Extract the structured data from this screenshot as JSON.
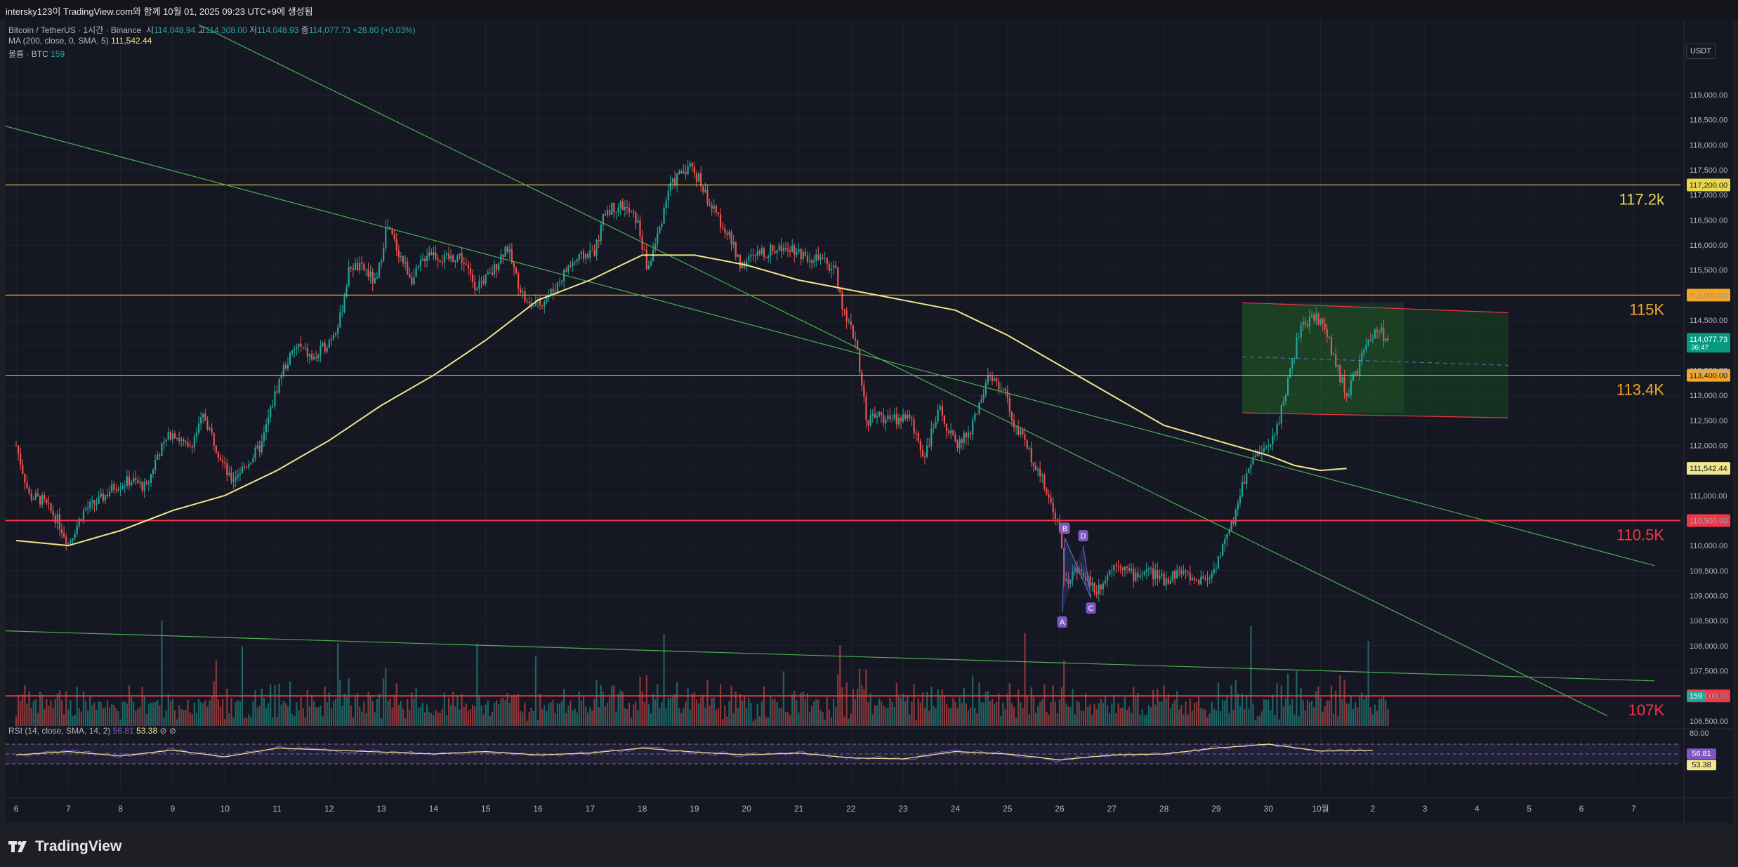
{
  "header": {
    "title": "intersky123이 TradingView.com와 함께 10월 01, 2025 09:23 UTC+9에 생성됨"
  },
  "legend": {
    "symbol": "Bitcoin / TetherUS · 1시간 · Binance",
    "open_label": "시",
    "open": "114,048.94",
    "high_label": "고",
    "high": "114,308.00",
    "low_label": "저",
    "low": "114,048.93",
    "close_label": "종",
    "close": "114,077.73",
    "change": "+28.80 (+0.03%)",
    "ma_label": "MA (200, close, 0, SMA, 5)",
    "ma_value": "111,542.44",
    "volume_label": "볼륨 · BTC",
    "volume_value": "159",
    "rsi_label": "RSI (14, close, SMA, 14, 2)",
    "rsi_value": "56.81",
    "rsi_ma_value": "53.38"
  },
  "currency_badge": "USDT",
  "branding": {
    "logo_text": "TradingView"
  },
  "colors": {
    "up": "#26a69a",
    "down": "#ef5350",
    "ma": "#f0e68c",
    "level_yellow": "#e9d84a",
    "level_orange": "#f5a623",
    "level_red": "#f23645",
    "trendline": "#4caf50",
    "rsi": "#7e57c2",
    "background": "#151823"
  },
  "chart_data": {
    "type": "candlestick",
    "symbol": "BTCUSDT",
    "interval": "1시간",
    "exchange": "Binance",
    "x": {
      "tick_labels": [
        "6",
        "7",
        "8",
        "9",
        "10",
        "11",
        "12",
        "13",
        "14",
        "15",
        "16",
        "17",
        "18",
        "19",
        "20",
        "21",
        "22",
        "23",
        "24",
        "25",
        "26",
        "27",
        "28",
        "29",
        "30",
        "10월",
        "2",
        "3",
        "4",
        "5",
        "6",
        "7"
      ]
    },
    "y": {
      "range": [
        106400,
        120500
      ],
      "tick_labels": [
        "119,000.00",
        "118,500.00",
        "118,000.00",
        "117,500.00",
        "117,000.00",
        "116,500.00",
        "116,000.00",
        "115,500.00",
        "115,000.00",
        "114,500.00",
        "114,000.00",
        "113,500.00",
        "113,000.00",
        "112,500.00",
        "112,000.00",
        "111,500.00",
        "111,000.00",
        "110,500.00",
        "110,000.00",
        "109,500.00",
        "109,000.00",
        "108,500.00",
        "108,000.00",
        "107,500.00",
        "107,000.00",
        "106,500.00"
      ]
    },
    "price_path": [
      [
        0,
        112000
      ],
      [
        0.25,
        111000
      ],
      [
        0.5,
        110900
      ],
      [
        0.8,
        110500
      ],
      [
        1.0,
        110050
      ],
      [
        1.3,
        110700
      ],
      [
        1.6,
        110900
      ],
      [
        1.9,
        111200
      ],
      [
        2.2,
        111300
      ],
      [
        2.5,
        111150
      ],
      [
        2.7,
        111800
      ],
      [
        3.0,
        112300
      ],
      [
        3.3,
        111900
      ],
      [
        3.6,
        112600
      ],
      [
        3.9,
        111800
      ],
      [
        4.1,
        111300
      ],
      [
        4.4,
        111600
      ],
      [
        4.7,
        112000
      ],
      [
        4.9,
        112800
      ],
      [
        5.1,
        113500
      ],
      [
        5.4,
        114000
      ],
      [
        5.7,
        113700
      ],
      [
        6.0,
        114100
      ],
      [
        6.2,
        114500
      ],
      [
        6.4,
        115600
      ],
      [
        6.7,
        115500
      ],
      [
        6.9,
        115200
      ],
      [
        7.1,
        116400
      ],
      [
        7.4,
        115700
      ],
      [
        7.6,
        115300
      ],
      [
        7.9,
        115900
      ],
      [
        8.2,
        115700
      ],
      [
        8.5,
        115800
      ],
      [
        8.8,
        115200
      ],
      [
        9.1,
        115400
      ],
      [
        9.4,
        116000
      ],
      [
        9.6,
        115300
      ],
      [
        9.8,
        114800
      ],
      [
        10.0,
        114800
      ],
      [
        10.3,
        115100
      ],
      [
        10.6,
        115600
      ],
      [
        10.9,
        115800
      ],
      [
        11.1,
        115900
      ],
      [
        11.3,
        116700
      ],
      [
        11.6,
        116800
      ],
      [
        11.9,
        116500
      ],
      [
        12.1,
        115500
      ],
      [
        12.3,
        116200
      ],
      [
        12.5,
        117100
      ],
      [
        12.7,
        117400
      ],
      [
        12.9,
        117600
      ],
      [
        13.1,
        117300
      ],
      [
        13.3,
        116800
      ],
      [
        13.6,
        116300
      ],
      [
        13.9,
        115600
      ],
      [
        14.2,
        115800
      ],
      [
        14.5,
        115900
      ],
      [
        14.8,
        116000
      ],
      [
        15.1,
        115800
      ],
      [
        15.4,
        115700
      ],
      [
        15.7,
        115500
      ],
      [
        15.9,
        114500
      ],
      [
        16.1,
        114100
      ],
      [
        16.3,
        112500
      ],
      [
        16.5,
        112600
      ],
      [
        16.8,
        112500
      ],
      [
        17.1,
        112600
      ],
      [
        17.4,
        111800
      ],
      [
        17.7,
        112700
      ],
      [
        18.0,
        112000
      ],
      [
        18.3,
        112300
      ],
      [
        18.6,
        113300
      ],
      [
        18.9,
        113200
      ],
      [
        19.1,
        112500
      ],
      [
        19.3,
        112100
      ],
      [
        19.6,
        111500
      ],
      [
        19.8,
        110900
      ],
      [
        20.0,
        110400
      ],
      [
        20.1,
        109200
      ],
      [
        20.3,
        109500
      ],
      [
        20.5,
        109400
      ],
      [
        20.7,
        109100
      ],
      [
        20.9,
        109400
      ],
      [
        21.1,
        109700
      ],
      [
        21.4,
        109400
      ],
      [
        21.7,
        109500
      ],
      [
        22.0,
        109300
      ],
      [
        22.3,
        109500
      ],
      [
        22.6,
        109300
      ],
      [
        22.9,
        109400
      ],
      [
        23.1,
        109900
      ],
      [
        23.3,
        110400
      ],
      [
        23.5,
        111200
      ],
      [
        23.7,
        111800
      ],
      [
        24.0,
        111900
      ],
      [
        24.2,
        112500
      ],
      [
        24.4,
        113400
      ],
      [
        24.6,
        114300
      ],
      [
        24.9,
        114600
      ],
      [
        25.1,
        114300
      ],
      [
        25.3,
        113600
      ],
      [
        25.5,
        113000
      ],
      [
        25.7,
        113500
      ],
      [
        25.9,
        114000
      ],
      [
        26.1,
        114300
      ],
      [
        26.3,
        114100
      ]
    ],
    "moving_average": {
      "name": "MA (200, close, 0, SMA, 5)",
      "last_value": 111542.44,
      "path": [
        [
          0,
          110100
        ],
        [
          1,
          110000
        ],
        [
          2,
          110300
        ],
        [
          3,
          110700
        ],
        [
          4,
          111000
        ],
        [
          5,
          111500
        ],
        [
          6,
          112100
        ],
        [
          7,
          112800
        ],
        [
          8,
          113400
        ],
        [
          9,
          114100
        ],
        [
          10,
          114900
        ],
        [
          11,
          115300
        ],
        [
          12,
          115800
        ],
        [
          13,
          115800
        ],
        [
          14,
          115600
        ],
        [
          15,
          115300
        ],
        [
          16,
          115100
        ],
        [
          17,
          114900
        ],
        [
          18,
          114700
        ],
        [
          19,
          114200
        ],
        [
          20,
          113600
        ],
        [
          21,
          113000
        ],
        [
          22,
          112400
        ],
        [
          23,
          112100
        ],
        [
          24,
          111800
        ],
        [
          24.5,
          111600
        ],
        [
          25,
          111500
        ],
        [
          25.5,
          111540
        ]
      ]
    },
    "horizontal_levels": [
      {
        "price": 117200,
        "label": "117.2k",
        "axis_label": "117,200.00",
        "color": "#e9d84a"
      },
      {
        "price": 115000,
        "label": "115K",
        "axis_label": "115,000.00",
        "color": "#f5a623"
      },
      {
        "price": 113400,
        "label": "113.4K",
        "axis_label": "113,400.00",
        "color": "#f5a623"
      },
      {
        "price": 110500,
        "label": "110.5K",
        "axis_label": "110,500.00",
        "color": "#f23645"
      },
      {
        "price": 107000,
        "label": "107K",
        "axis_label": "107,000.00",
        "color": "#f23645"
      }
    ],
    "trendlines": [
      {
        "from": [
          -0.3,
          118400
        ],
        "to": [
          31.4,
          109600
        ]
      },
      {
        "from": [
          3.5,
          120400
        ],
        "to": [
          30.5,
          106600
        ]
      },
      {
        "from": [
          -0.3,
          108300
        ],
        "to": [
          31.4,
          107300
        ]
      }
    ],
    "channel": {
      "upper": {
        "from": [
          23.5,
          114850
        ],
        "to": [
          28.6,
          114650
        ]
      },
      "lower": {
        "from": [
          23.5,
          112650
        ],
        "to": [
          28.6,
          112550
        ]
      }
    },
    "pattern_points": [
      {
        "label": "A",
        "x": 20.05,
        "price": 108670
      },
      {
        "label": "B",
        "x": 20.1,
        "price": 110150
      },
      {
        "label": "C",
        "x": 20.6,
        "price": 108950
      },
      {
        "label": "D",
        "x": 20.45,
        "price": 110000
      }
    ],
    "current_price": {
      "value": "114,077.73",
      "countdown": "36:47"
    },
    "volume": {
      "last": "159"
    },
    "rsi": {
      "levels": [
        70,
        50,
        30
      ],
      "tick_label": "80.00",
      "value": 56.81,
      "ma_value": 53.38,
      "path": [
        [
          0,
          48
        ],
        [
          1,
          55
        ],
        [
          2,
          46
        ],
        [
          3,
          58
        ],
        [
          4,
          44
        ],
        [
          5,
          62
        ],
        [
          6,
          58
        ],
        [
          7,
          54
        ],
        [
          8,
          50
        ],
        [
          9,
          55
        ],
        [
          10,
          48
        ],
        [
          11,
          52
        ],
        [
          12,
          62
        ],
        [
          13,
          54
        ],
        [
          14,
          48
        ],
        [
          15,
          52
        ],
        [
          16,
          42
        ],
        [
          17,
          40
        ],
        [
          18,
          55
        ],
        [
          19,
          50
        ],
        [
          20,
          38
        ],
        [
          21,
          48
        ],
        [
          22,
          50
        ],
        [
          23,
          62
        ],
        [
          24,
          70
        ],
        [
          25,
          56
        ],
        [
          26,
          57
        ]
      ]
    }
  }
}
